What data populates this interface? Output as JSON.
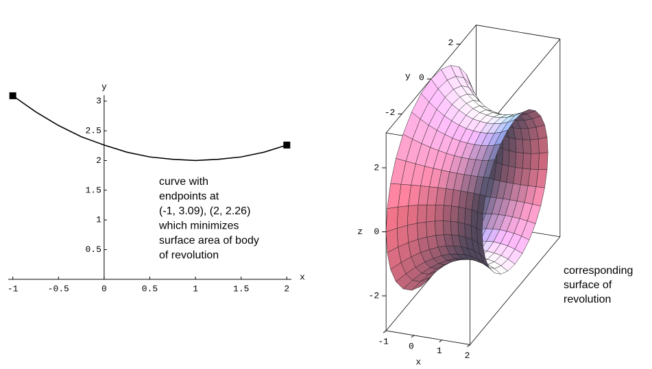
{
  "chart_data": [
    {
      "type": "line",
      "x": [
        -1,
        -0.75,
        -0.5,
        -0.25,
        0,
        0.25,
        0.5,
        0.75,
        1,
        1.25,
        1.5,
        1.75,
        2
      ],
      "values": [
        3.09,
        2.82,
        2.59,
        2.4,
        2.26,
        2.14,
        2.06,
        2.02,
        2,
        2.02,
        2.06,
        2.14,
        2.26
      ],
      "color": "#000000",
      "xlabel": "x",
      "ylabel": "y",
      "xlim": [
        -1.05,
        2.05
      ],
      "ylim": [
        0,
        3.1
      ],
      "xticks": [
        -1,
        -0.5,
        0,
        0.5,
        1,
        1.5,
        2
      ],
      "yticks": [
        0.5,
        1,
        1.5,
        2,
        2.5,
        3
      ],
      "annotation": [
        "curve with",
        "endpoints at",
        "(-1, 3.09), (2, 2.26)",
        "which minimizes",
        "surface area of body",
        "of revolution"
      ]
    },
    {
      "type": "surface3d",
      "xlabel": "x",
      "ylabel": "y",
      "zlabel": "z",
      "xlim": [
        -1,
        2
      ],
      "ylim": [
        -3.09,
        3.09
      ],
      "zlim": [
        -3.09,
        3.09
      ],
      "xticks": [
        -1,
        0,
        1,
        2
      ],
      "yticks": [
        -2,
        0,
        2
      ],
      "zticks": [
        -2,
        0,
        2
      ],
      "annotation": [
        "corresponding",
        "surface of",
        "revolution"
      ]
    }
  ]
}
